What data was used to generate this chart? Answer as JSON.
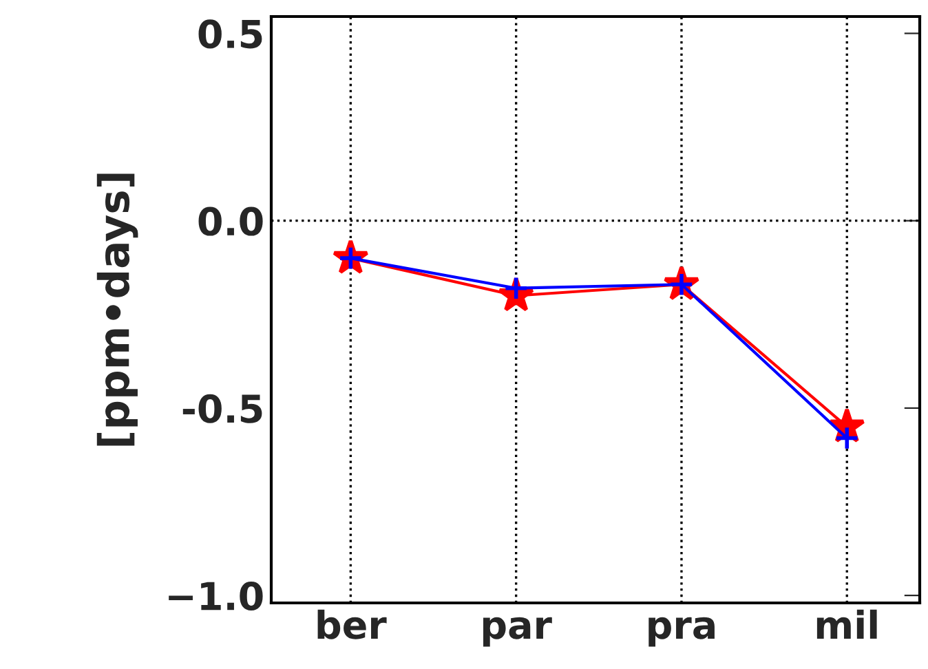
{
  "chart_data": {
    "type": "line",
    "ylabel": "[ppm•days]",
    "categories": [
      "ber",
      "par",
      "pra",
      "mil"
    ],
    "series": [
      {
        "color": "#ff0000",
        "values": [
          -0.1,
          -0.2,
          -0.17,
          -0.55
        ],
        "marker": "star"
      },
      {
        "color": "#0000ff",
        "values": [
          -0.1,
          -0.18,
          -0.17,
          -0.58
        ],
        "marker": "cross"
      }
    ],
    "ylim": [
      -1.02,
      0.545
    ],
    "yticks": [
      {
        "value": 0.5,
        "label": "0.5"
      },
      {
        "value": 0.0,
        "label": "0.0"
      },
      {
        "value": -0.5,
        "label": "-0.5"
      },
      {
        "value": -1.0,
        "label": "−1.0"
      }
    ],
    "grid": "x",
    "ref_lines": [
      {
        "axis": "y",
        "value": 0,
        "line_style": "dotted",
        "color": "#000000"
      }
    ],
    "legend": false
  }
}
